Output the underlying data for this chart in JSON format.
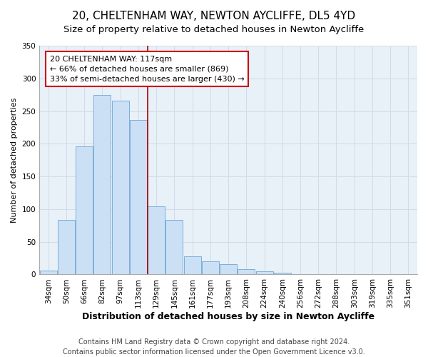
{
  "title": "20, CHELTENHAM WAY, NEWTON AYCLIFFE, DL5 4YD",
  "subtitle": "Size of property relative to detached houses in Newton Aycliffe",
  "xlabel": "Distribution of detached houses by size in Newton Aycliffe",
  "ylabel": "Number of detached properties",
  "bar_labels": [
    "34sqm",
    "50sqm",
    "66sqm",
    "82sqm",
    "97sqm",
    "113sqm",
    "129sqm",
    "145sqm",
    "161sqm",
    "177sqm",
    "193sqm",
    "208sqm",
    "224sqm",
    "240sqm",
    "256sqm",
    "272sqm",
    "288sqm",
    "303sqm",
    "319sqm",
    "335sqm",
    "351sqm"
  ],
  "bar_values": [
    6,
    84,
    196,
    275,
    266,
    236,
    104,
    84,
    28,
    20,
    16,
    8,
    5,
    3,
    1,
    1,
    0,
    0,
    0,
    0,
    1
  ],
  "bar_color": "#cce0f5",
  "bar_edge_color": "#7ab0d8",
  "vline_x": 5.5,
  "vline_color": "#aa0000",
  "annotation_title": "20 CHELTENHAM WAY: 117sqm",
  "annotation_line1": "← 66% of detached houses are smaller (869)",
  "annotation_line2": "33% of semi-detached houses are larger (430) →",
  "annotation_box_color": "#ffffff",
  "annotation_box_edge": "#cc0000",
  "ylim": [
    0,
    350
  ],
  "yticks": [
    0,
    50,
    100,
    150,
    200,
    250,
    300,
    350
  ],
  "grid_color": "#d0dce8",
  "axes_bg_color": "#e8f0f8",
  "footer1": "Contains HM Land Registry data © Crown copyright and database right 2024.",
  "footer2": "Contains public sector information licensed under the Open Government Licence v3.0.",
  "title_fontsize": 11,
  "subtitle_fontsize": 9.5,
  "xlabel_fontsize": 9,
  "ylabel_fontsize": 8,
  "tick_fontsize": 7.5,
  "ann_fontsize": 8,
  "footer_fontsize": 7
}
